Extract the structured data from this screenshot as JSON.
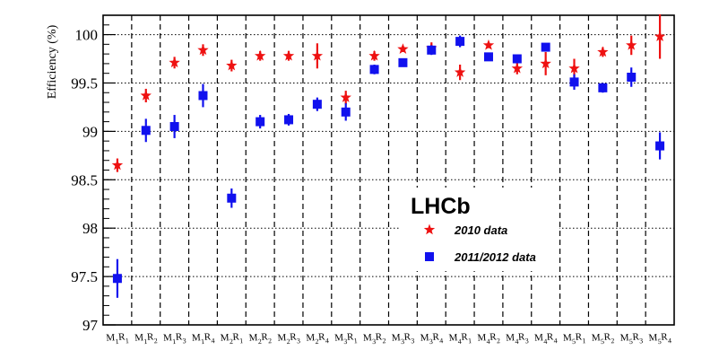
{
  "chart_data": {
    "type": "scatter",
    "ylabel": "Efficiency (%)",
    "ylim": [
      97,
      100.2
    ],
    "yticks": [
      97,
      97.5,
      98,
      98.5,
      99,
      99.5,
      100
    ],
    "categories": [
      {
        "m": "1",
        "r": "1"
      },
      {
        "m": "1",
        "r": "2"
      },
      {
        "m": "1",
        "r": "3"
      },
      {
        "m": "1",
        "r": "4"
      },
      {
        "m": "2",
        "r": "1"
      },
      {
        "m": "2",
        "r": "2"
      },
      {
        "m": "2",
        "r": "3"
      },
      {
        "m": "2",
        "r": "4"
      },
      {
        "m": "3",
        "r": "1"
      },
      {
        "m": "3",
        "r": "2"
      },
      {
        "m": "3",
        "r": "3"
      },
      {
        "m": "3",
        "r": "4"
      },
      {
        "m": "4",
        "r": "1"
      },
      {
        "m": "4",
        "r": "2"
      },
      {
        "m": "4",
        "r": "3"
      },
      {
        "m": "4",
        "r": "4"
      },
      {
        "m": "5",
        "r": "1"
      },
      {
        "m": "5",
        "r": "2"
      },
      {
        "m": "5",
        "r": "3"
      },
      {
        "m": "5",
        "r": "4"
      }
    ],
    "grid": true,
    "legend": {
      "title": "LHCb",
      "placement": "lower-right",
      "entries": [
        "2010 data",
        "2011/2012 data"
      ]
    },
    "series": [
      {
        "name": "2010 data",
        "marker": "star",
        "color": "#ee1111",
        "values": [
          98.65,
          99.37,
          99.71,
          99.84,
          99.68,
          99.78,
          99.78,
          99.78,
          99.35,
          99.78,
          99.85,
          99.86,
          99.61,
          99.89,
          99.65,
          99.7,
          99.65,
          99.82,
          99.89,
          99.98
        ],
        "err": [
          0.07,
          0.07,
          0.06,
          0.06,
          0.06,
          0.05,
          0.05,
          0.13,
          0.07,
          0.05,
          0.03,
          0.06,
          0.08,
          0.03,
          0.06,
          0.12,
          0.1,
          0.05,
          0.1,
          0.23
        ]
      },
      {
        "name": "2011/2012 data",
        "marker": "square",
        "color": "#1111ee",
        "values": [
          97.48,
          99.01,
          99.05,
          99.37,
          98.31,
          99.1,
          99.12,
          99.28,
          99.2,
          99.64,
          99.71,
          99.84,
          99.93,
          99.77,
          99.75,
          99.87,
          99.51,
          99.45,
          99.56,
          98.85
        ],
        "err": [
          0.2,
          0.12,
          0.12,
          0.12,
          0.1,
          0.07,
          0.06,
          0.07,
          0.09,
          0.05,
          0.03,
          0.05,
          0.06,
          0.03,
          0.03,
          0.03,
          0.08,
          0.05,
          0.1,
          0.14
        ]
      }
    ]
  }
}
